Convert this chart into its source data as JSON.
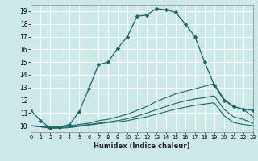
{
  "title": "",
  "xlabel": "Humidex (Indice chaleur)",
  "xlim": [
    0,
    23
  ],
  "ylim": [
    9.5,
    19.5
  ],
  "xticks": [
    0,
    1,
    2,
    3,
    4,
    5,
    6,
    7,
    8,
    9,
    10,
    11,
    12,
    13,
    14,
    15,
    16,
    17,
    18,
    19,
    20,
    21,
    22,
    23
  ],
  "yticks": [
    10,
    11,
    12,
    13,
    14,
    15,
    16,
    17,
    18,
    19
  ],
  "bg_color": "#cde8e8",
  "grid_color": "#ffffff",
  "line_color": "#1a6666",
  "curves": [
    {
      "x": [
        0,
        1,
        2,
        3,
        4,
        5,
        6,
        7,
        8,
        9,
        10,
        11,
        12,
        13,
        14,
        15,
        16,
        17,
        18,
        19,
        20,
        21,
        22,
        23
      ],
      "y": [
        11.2,
        10.4,
        9.8,
        9.9,
        10.1,
        11.1,
        12.9,
        14.8,
        15.0,
        16.1,
        17.0,
        18.6,
        18.7,
        19.2,
        19.1,
        18.9,
        18.0,
        17.0,
        15.0,
        13.2,
        12.0,
        11.5,
        11.3,
        11.2
      ],
      "marker": "D",
      "markersize": 2.5
    },
    {
      "x": [
        0,
        2,
        3,
        4,
        5,
        6,
        7,
        8,
        9,
        10,
        11,
        12,
        13,
        14,
        15,
        16,
        17,
        18,
        19,
        20,
        21,
        22,
        23
      ],
      "y": [
        10.0,
        9.9,
        9.9,
        10.0,
        10.1,
        10.2,
        10.4,
        10.5,
        10.7,
        10.9,
        11.2,
        11.5,
        11.9,
        12.2,
        12.5,
        12.7,
        12.9,
        13.1,
        13.3,
        12.1,
        11.5,
        11.3,
        10.7
      ],
      "marker": null,
      "markersize": 0
    },
    {
      "x": [
        0,
        2,
        3,
        4,
        5,
        6,
        7,
        8,
        9,
        10,
        11,
        12,
        13,
        14,
        15,
        16,
        17,
        18,
        19,
        20,
        21,
        22,
        23
      ],
      "y": [
        10.0,
        9.85,
        9.85,
        9.9,
        10.0,
        10.1,
        10.2,
        10.3,
        10.4,
        10.55,
        10.75,
        11.0,
        11.25,
        11.5,
        11.75,
        11.95,
        12.1,
        12.2,
        12.35,
        11.3,
        10.7,
        10.5,
        10.2
      ],
      "marker": null,
      "markersize": 0
    },
    {
      "x": [
        0,
        2,
        3,
        4,
        5,
        6,
        7,
        8,
        9,
        10,
        11,
        12,
        13,
        14,
        15,
        16,
        17,
        18,
        19,
        20,
        21,
        22,
        23
      ],
      "y": [
        10.0,
        9.8,
        9.8,
        9.85,
        9.95,
        10.05,
        10.15,
        10.25,
        10.3,
        10.4,
        10.55,
        10.7,
        10.9,
        11.1,
        11.3,
        11.45,
        11.6,
        11.7,
        11.8,
        10.8,
        10.25,
        10.1,
        10.0
      ],
      "marker": null,
      "markersize": 0
    }
  ]
}
